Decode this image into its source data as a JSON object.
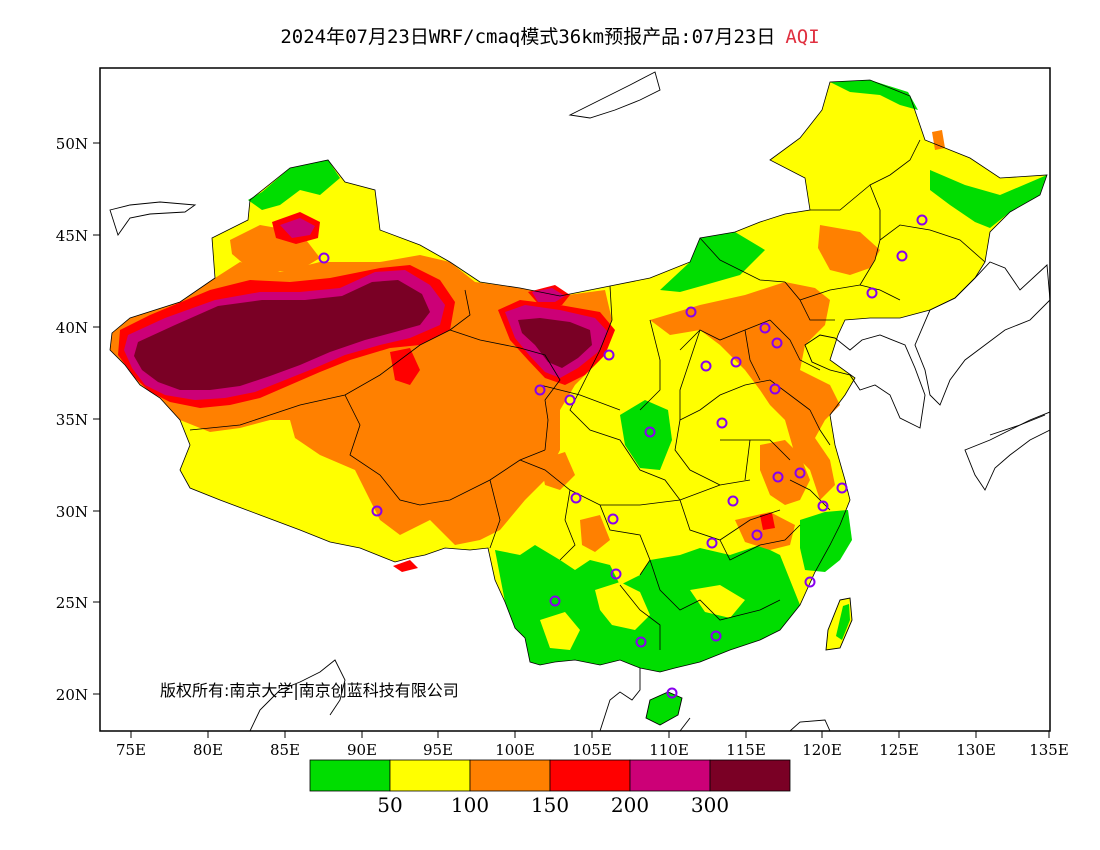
{
  "title": {
    "main": "2024年07月23日WRF/cmaq模式36km预报产品:07月23日",
    "variable": "AQI"
  },
  "copyright": "版权所有:南京大学|南京创蓝科技有限公司",
  "axes": {
    "lat_labels": [
      "50N",
      "45N",
      "40N",
      "35N",
      "30N",
      "25N",
      "20N"
    ],
    "lon_labels": [
      "75E",
      "80E",
      "85E",
      "90E",
      "95E",
      "100E",
      "105E",
      "110E",
      "115E",
      "120E",
      "125E",
      "130E",
      "135E"
    ]
  },
  "legend": {
    "colors": [
      "#00dd00",
      "#ffff00",
      "#ff8000",
      "#ff0000",
      "#cc0077",
      "#7a0025"
    ],
    "breaks": [
      "50",
      "100",
      "150",
      "200",
      "300"
    ]
  },
  "colors": {
    "aqi_0_50": "#00dd00",
    "aqi_50_100": "#ffff00",
    "aqi_100_150": "#ff8000",
    "aqi_150_200": "#ff0000",
    "aqi_200_300": "#cc0077",
    "aqi_300_plus": "#7a0025",
    "station_marker": "#8800ee",
    "title_highlight": "#e03040"
  }
}
